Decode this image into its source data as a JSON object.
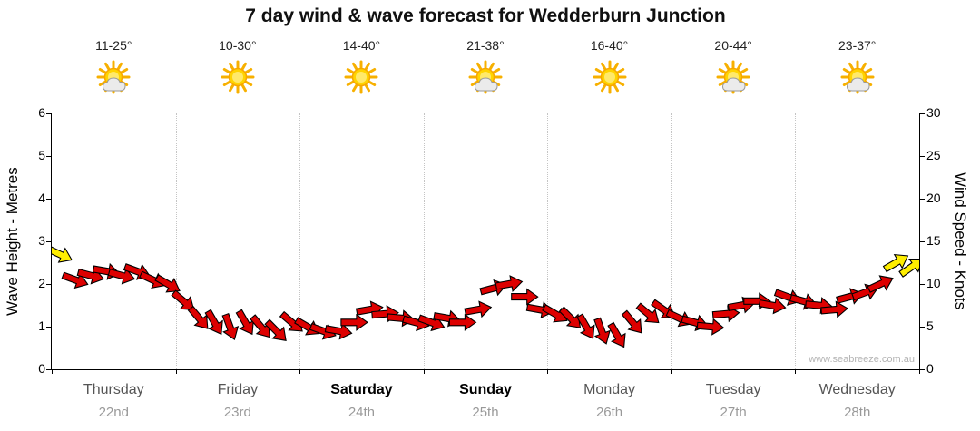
{
  "title": "7 day wind & wave forecast for Wedderburn Junction",
  "watermark": "www.seabreeze.com.au",
  "colors": {
    "arrow_red": "#dd0000",
    "arrow_yellow": "#ffee00",
    "arrow_outline": "#000000",
    "grid": "#c4c4c4"
  },
  "days": [
    {
      "name": "Thursday",
      "date": "22nd",
      "temp": "11-25°",
      "icon": "sun-cloud",
      "bold": false
    },
    {
      "name": "Friday",
      "date": "23rd",
      "temp": "10-30°",
      "icon": "sun",
      "bold": false
    },
    {
      "name": "Saturday",
      "date": "24th",
      "temp": "14-40°",
      "icon": "sun",
      "bold": true
    },
    {
      "name": "Sunday",
      "date": "25th",
      "temp": "21-38°",
      "icon": "sun-cloud",
      "bold": true
    },
    {
      "name": "Monday",
      "date": "26th",
      "temp": "16-40°",
      "icon": "sun",
      "bold": false
    },
    {
      "name": "Tuesday",
      "date": "27th",
      "temp": "20-44°",
      "icon": "sun-cloud",
      "bold": false
    },
    {
      "name": "Wednesday",
      "date": "28th",
      "temp": "23-37°",
      "icon": "sun-cloud",
      "bold": false
    }
  ],
  "axes": {
    "left_title": "Wave Height - Metres",
    "left_ticks": [
      0,
      1,
      2,
      3,
      4,
      5,
      6
    ],
    "left_max": 6,
    "right_title": "Wind Speed - Knots",
    "right_ticks": [
      0,
      5,
      10,
      15,
      20,
      25,
      30
    ],
    "right_max": 30
  },
  "chart_data": {
    "type": "scatter",
    "title": "7 day wind & wave forecast for Wedderburn Junction",
    "x_days": [
      "Thursday 22nd",
      "Friday 23rd",
      "Saturday 24th",
      "Sunday 25th",
      "Monday 26th",
      "Tuesday 27th",
      "Wednesday 28th"
    ],
    "points_per_day": 8,
    "wave_axis": {
      "label": "Wave Height - Metres",
      "min": 0,
      "max": 6
    },
    "wind_axis": {
      "label": "Wind Speed - Knots",
      "min": 0,
      "max": 30
    },
    "legend": "wind arrows plotted against right axis; red = moderate wind, yellow = light/peak marker",
    "knots": [
      13.5,
      10.5,
      11,
      11.5,
      11,
      11.5,
      10.5,
      10,
      8,
      6,
      5.5,
      5,
      5.5,
      5,
      4.5,
      5.5,
      5,
      4.5,
      4.5,
      5.5,
      7,
      6.5,
      6,
      5.5,
      5.5,
      6,
      5.5,
      7,
      9.5,
      10,
      8.5,
      7,
      6.5,
      6,
      5,
      4.5,
      4,
      5.5,
      6.5,
      7,
      6,
      5.5,
      5,
      6.5,
      7.5,
      8,
      7.5,
      8.5,
      8,
      7.5,
      7,
      8.5,
      9,
      10,
      12.5,
      12
    ],
    "dir_deg": [
      25,
      20,
      15,
      10,
      15,
      20,
      25,
      30,
      40,
      50,
      60,
      70,
      60,
      50,
      45,
      40,
      30,
      20,
      10,
      0,
      -10,
      -5,
      5,
      15,
      20,
      10,
      0,
      -10,
      -15,
      -10,
      0,
      10,
      30,
      45,
      60,
      70,
      60,
      50,
      40,
      35,
      25,
      15,
      5,
      -5,
      -10,
      0,
      10,
      20,
      15,
      5,
      -5,
      -15,
      -20,
      -25,
      -30,
      -35
    ],
    "arrow_colors": {
      "default": "red",
      "yellow_indices": [
        0,
        54,
        55
      ]
    }
  }
}
